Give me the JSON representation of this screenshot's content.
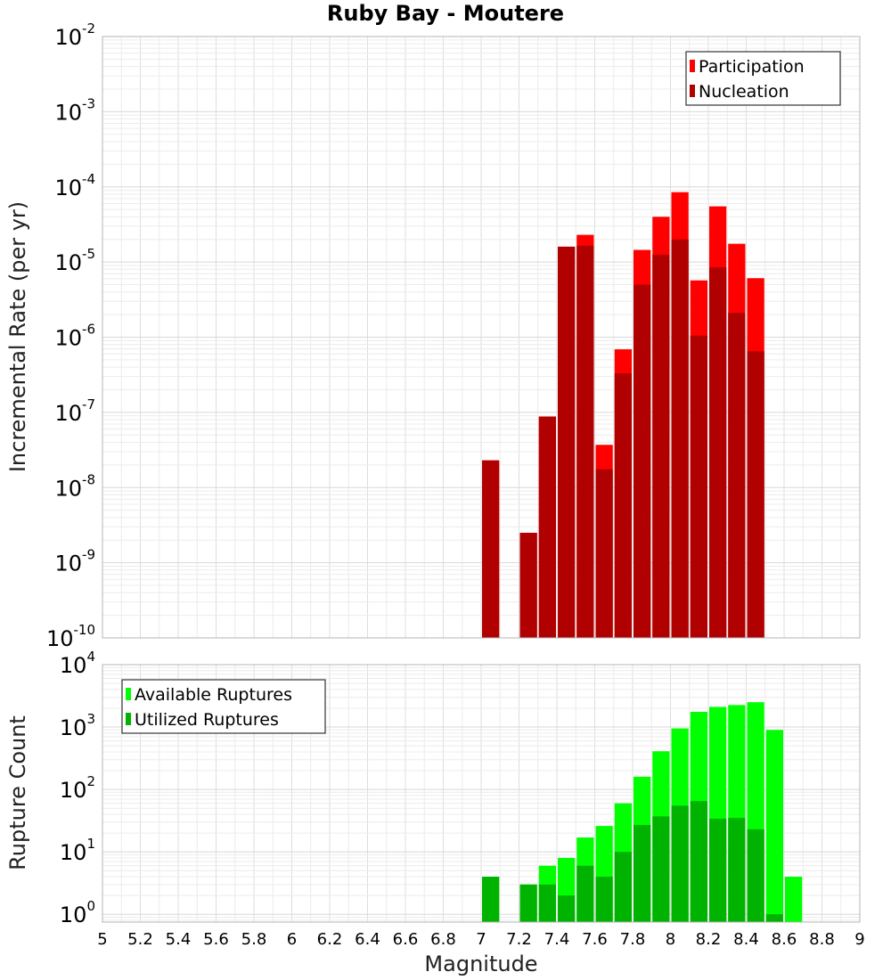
{
  "chart_data": [
    {
      "type": "bar",
      "panel": "rate",
      "title": "Ruby Bay - Moutere",
      "xlabel": "Magnitude",
      "ylabel": "Incremental Rate (per yr)",
      "xlim": [
        5,
        9
      ],
      "ylim": [
        1e-10,
        0.01
      ],
      "yscale": "log",
      "grid": true,
      "legend_placement": "top-right",
      "bin_width": 0.1,
      "x_ticks": [
        "5",
        "5.2",
        "5.4",
        "5.6",
        "5.8",
        "6",
        "6.2",
        "6.4",
        "6.6",
        "6.8",
        "7",
        "7.2",
        "7.4",
        "7.6",
        "7.8",
        "8",
        "8.2",
        "8.4",
        "8.6",
        "8.8",
        "9"
      ],
      "y_tick_exponents": [
        "-10",
        "-9",
        "-8",
        "-7",
        "-6",
        "-5",
        "-4",
        "-3",
        "-2"
      ],
      "y_tick_base": "10",
      "x": [
        7.05,
        7.15,
        7.25,
        7.35,
        7.45,
        7.55,
        7.65,
        7.75,
        7.85,
        7.95,
        8.05,
        8.15,
        8.25,
        8.35,
        8.45
      ],
      "series": [
        {
          "name": "Participation",
          "color": "#ff0000",
          "values": [
            2.3e-08,
            null,
            2.5e-09,
            8.8e-08,
            1.6e-05,
            2.3e-05,
            3.7e-08,
            6.9e-07,
            1.45e-05,
            4e-05,
            8.5e-05,
            5.7e-06,
            5.5e-05,
            1.75e-05,
            6.1e-06
          ]
        },
        {
          "name": "Nucleation",
          "color": "#b00000",
          "values": [
            2.3e-08,
            null,
            2.5e-09,
            8.8e-08,
            1.6e-05,
            1.65e-05,
            1.75e-08,
            3.3e-07,
            5e-06,
            1.25e-05,
            2e-05,
            1.05e-06,
            8.5e-06,
            2.1e-06,
            6.5e-07
          ]
        }
      ]
    },
    {
      "type": "bar",
      "panel": "count",
      "xlabel": "Magnitude",
      "ylabel": "Rupture Count",
      "xlim": [
        5,
        9
      ],
      "ylim": [
        0.75,
        10000
      ],
      "yscale": "log",
      "grid": true,
      "legend_placement": "top-left",
      "bin_width": 0.1,
      "x_ticks": [
        "5",
        "5.2",
        "5.4",
        "5.6",
        "5.8",
        "6",
        "6.2",
        "6.4",
        "6.6",
        "6.8",
        "7",
        "7.2",
        "7.4",
        "7.6",
        "7.8",
        "8",
        "8.2",
        "8.4",
        "8.6",
        "8.8",
        "9"
      ],
      "y_tick_exponents": [
        "0",
        "1",
        "2",
        "3",
        "4"
      ],
      "y_tick_base": "10",
      "x": [
        7.05,
        7.15,
        7.25,
        7.35,
        7.45,
        7.55,
        7.65,
        7.75,
        7.85,
        7.95,
        8.05,
        8.15,
        8.25,
        8.35,
        8.45,
        8.55,
        8.65
      ],
      "series": [
        {
          "name": "Available Ruptures",
          "color": "#00ff00",
          "values": [
            4,
            null,
            3,
            6,
            8,
            17,
            26,
            60,
            160,
            410,
            950,
            1750,
            2100,
            2250,
            2500,
            900,
            4
          ]
        },
        {
          "name": "Utilized Ruptures",
          "color": "#00b300",
          "values": [
            4,
            null,
            3,
            3,
            2,
            6,
            4,
            10,
            27,
            37,
            55,
            65,
            34,
            35,
            23,
            1,
            null
          ]
        }
      ]
    }
  ]
}
